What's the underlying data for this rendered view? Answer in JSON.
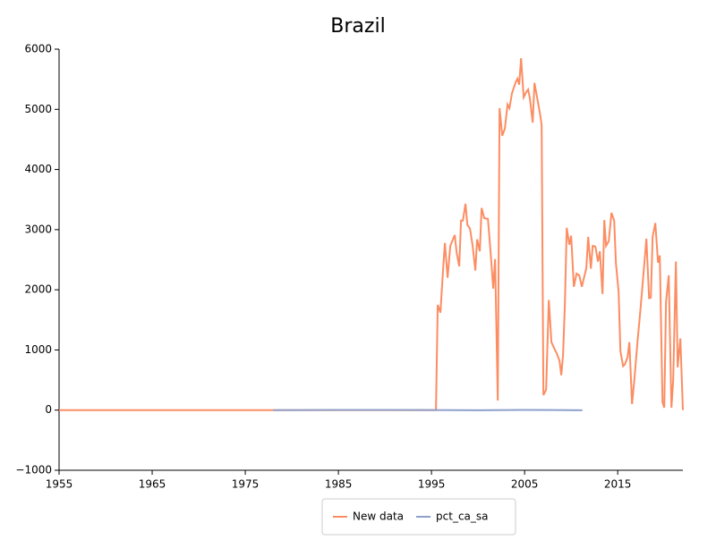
{
  "chart_data": {
    "type": "line",
    "title": "Brazil",
    "xlim": [
      1955,
      2022
    ],
    "xticks": [
      1955,
      1965,
      1975,
      1985,
      1995,
      2005,
      2015
    ],
    "ylim": [
      -1000,
      6000
    ],
    "yticks": [
      {
        "value": -1000,
        "label": "−1000"
      },
      0,
      1000,
      2000,
      3000,
      4000,
      5000,
      6000
    ],
    "grid": false,
    "legend": "bottom",
    "series": [
      {
        "name": "New data",
        "color": "#fc8d62",
        "x": [
          1955,
          1995.48,
          1995.67,
          1995.96,
          1996.25,
          1996.44,
          1996.73,
          1997.02,
          1997.31,
          1997.5,
          1997.69,
          1997.98,
          1998.17,
          1998.37,
          1998.65,
          1998.85,
          1999.13,
          1999.42,
          1999.71,
          1999.9,
          2000.19,
          2000.38,
          2000.67,
          2001.06,
          2001.35,
          2001.63,
          2001.83,
          2002.12,
          2002.31,
          2002.6,
          2002.88,
          2003.17,
          2003.37,
          2003.65,
          2004.04,
          2004.23,
          2004.42,
          2004.62,
          2004.9,
          2005.19,
          2005.38,
          2005.58,
          2005.87,
          2006.06,
          2006.35,
          2006.63,
          2006.83,
          2007.02,
          2007.31,
          2007.6,
          2007.88,
          2008.17,
          2008.46,
          2008.75,
          2008.94,
          2009.13,
          2009.33,
          2009.52,
          2009.81,
          2010.0,
          2010.29,
          2010.58,
          2010.87,
          2011.15,
          2011.44,
          2011.63,
          2011.83,
          2012.12,
          2012.31,
          2012.6,
          2012.88,
          2013.08,
          2013.37,
          2013.56,
          2013.75,
          2014.04,
          2014.33,
          2014.62,
          2014.81,
          2015.1,
          2015.29,
          2015.58,
          2015.77,
          2016.06,
          2016.25,
          2016.54,
          2016.83,
          2017.12,
          2017.4,
          2017.69,
          2018.08,
          2018.37,
          2018.56,
          2018.75,
          2019.04,
          2019.33,
          2019.52,
          2019.81,
          2020.0,
          2020.19,
          2020.48,
          2020.77,
          2020.96,
          2021.25,
          2021.44,
          2021.73,
          2022
        ],
        "values": [
          0,
          0,
          1750,
          1620,
          2350,
          2780,
          2200,
          2730,
          2840,
          2910,
          2630,
          2390,
          3150,
          3150,
          3430,
          3080,
          3020,
          2730,
          2320,
          2840,
          2640,
          3360,
          3190,
          3180,
          2620,
          2020,
          2510,
          160,
          5020,
          4560,
          4680,
          5080,
          5020,
          5270,
          5450,
          5510,
          5410,
          5850,
          5200,
          5290,
          5330,
          5170,
          4780,
          5440,
          5190,
          4950,
          4740,
          250,
          340,
          1830,
          1130,
          1030,
          940,
          820,
          580,
          920,
          1770,
          3030,
          2750,
          2900,
          2050,
          2270,
          2240,
          2050,
          2240,
          2360,
          2880,
          2350,
          2730,
          2720,
          2470,
          2640,
          1930,
          3160,
          2730,
          2810,
          3280,
          3150,
          2440,
          1960,
          980,
          730,
          760,
          880,
          1130,
          100,
          580,
          1130,
          1600,
          2120,
          2850,
          1860,
          1870,
          2880,
          3110,
          2450,
          2570,
          130,
          40,
          1800,
          2240,
          40,
          490,
          2470,
          710,
          1190,
          0
        ]
      },
      {
        "name": "pct_ca_sa",
        "color": "#8da0cb",
        "x": [
          1978,
          1985,
          1990,
          1995,
          2000,
          2005,
          2008,
          2011.2
        ],
        "values": [
          0,
          3,
          4,
          2,
          -3,
          3,
          2,
          -2
        ]
      }
    ]
  }
}
